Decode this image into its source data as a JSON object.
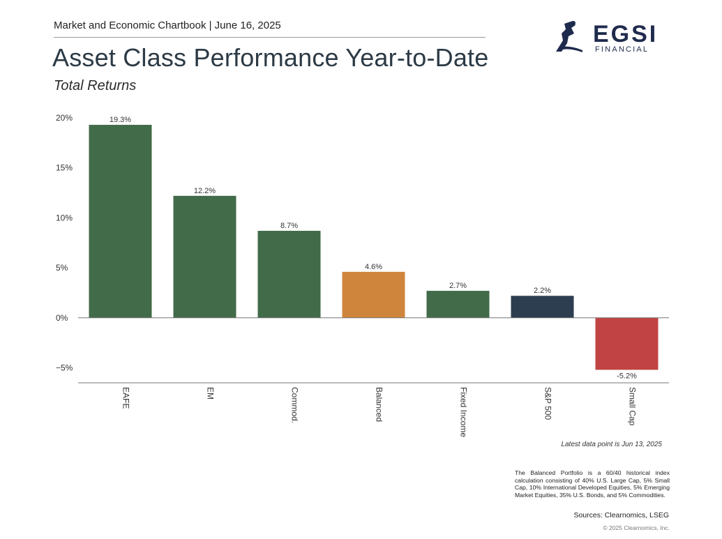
{
  "header": {
    "chartbook_line": "Market and Economic Chartbook | June 16, 2025"
  },
  "title": "Asset Class Performance Year-to-Date",
  "subtitle": "Total Returns",
  "logo": {
    "name": "EGSI",
    "sub": "FINANCIAL",
    "icon": "egsi-emblem-icon"
  },
  "chart_data": {
    "type": "bar",
    "categories": [
      "EAFE",
      "EM",
      "Commod.",
      "Balanced",
      "Fixed Income",
      "S&P 500",
      "Small Cap"
    ],
    "values": [
      19.3,
      12.2,
      8.7,
      4.6,
      2.7,
      2.2,
      -5.2
    ],
    "value_labels": [
      "19.3%",
      "12.2%",
      "8.7%",
      "4.6%",
      "2.7%",
      "2.2%",
      "-5.2%"
    ],
    "colors": [
      "#426b49",
      "#426b49",
      "#426b49",
      "#d0853c",
      "#426b49",
      "#2c3e4f",
      "#c24343"
    ],
    "yticks": [
      20,
      15,
      10,
      5,
      0,
      -5
    ],
    "ytick_labels": [
      "20%",
      "15%",
      "10%",
      "5%",
      "0%",
      "−5%"
    ],
    "ylim": [
      -6.5,
      20
    ],
    "grid": false,
    "legend": "none"
  },
  "notes": {
    "latest": "Latest data point is Jun 13, 2025",
    "footnote": "The Balanced Portfolio is a 60/40 historical index calculation consisting of 40% U.S. Large Cap, 5% Small Cap, 10% International Developed Equities, 5% Emerging Market Equities, 35% U.S. Bonds, and 5% Commodities.",
    "sources": "Sources: Clearnomics, LSEG",
    "copyright": "© 2025 Clearnomics, Inc."
  }
}
